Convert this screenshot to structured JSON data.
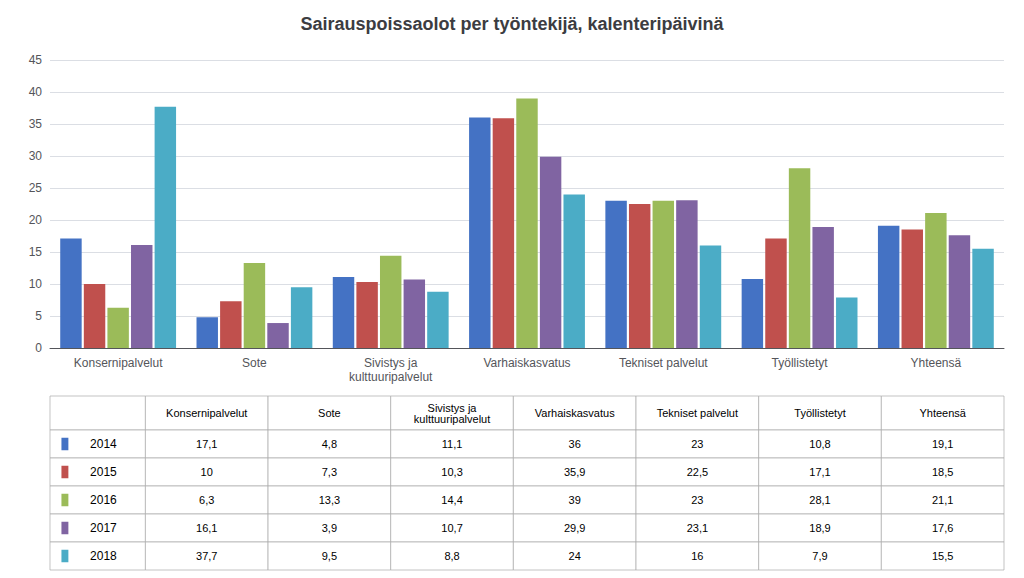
{
  "chart_data": {
    "type": "bar",
    "title": "Sairauspoissaolot per työntekijä, kalenteripäivinä",
    "categories": [
      "Konsernipalvelut",
      "Sote",
      "Sivistys ja\nkulttuuripalvelut",
      "Varhaiskasvatus",
      "Tekniset palvelut",
      "Työllistetyt",
      "Yhteensä"
    ],
    "series": [
      {
        "name": "2014",
        "color": "#4472C4",
        "values": [
          17.1,
          4.8,
          11.1,
          36.0,
          23.0,
          10.8,
          19.1
        ],
        "value_labels": [
          "17,1",
          "4,8",
          "11,1",
          "36",
          "23",
          "10,8",
          "19,1"
        ]
      },
      {
        "name": "2015",
        "color": "#C0504D",
        "values": [
          10.0,
          7.3,
          10.3,
          35.9,
          22.5,
          17.1,
          18.5
        ],
        "value_labels": [
          "10",
          "7,3",
          "10,3",
          "35,9",
          "22,5",
          "17,1",
          "18,5"
        ]
      },
      {
        "name": "2016",
        "color": "#9BBB59",
        "values": [
          6.3,
          13.3,
          14.4,
          39.0,
          23.0,
          28.1,
          21.1
        ],
        "value_labels": [
          "6,3",
          "13,3",
          "14,4",
          "39",
          "23",
          "28,1",
          "21,1"
        ]
      },
      {
        "name": "2017",
        "color": "#8064A2",
        "values": [
          16.1,
          3.9,
          10.7,
          29.9,
          23.1,
          18.9,
          17.6
        ],
        "value_labels": [
          "16,1",
          "3,9",
          "10,7",
          "29,9",
          "23,1",
          "18,9",
          "17,6"
        ]
      },
      {
        "name": "2018",
        "color": "#4BACC6",
        "values": [
          37.7,
          9.5,
          8.8,
          24.0,
          16.0,
          7.9,
          15.5
        ],
        "value_labels": [
          "37,7",
          "9,5",
          "8,8",
          "24",
          "16",
          "7,9",
          "15,5"
        ]
      }
    ],
    "ylim": [
      0,
      45
    ],
    "yticks": [
      0,
      5,
      10,
      15,
      20,
      25,
      30,
      35,
      40,
      45
    ],
    "grid": true
  }
}
